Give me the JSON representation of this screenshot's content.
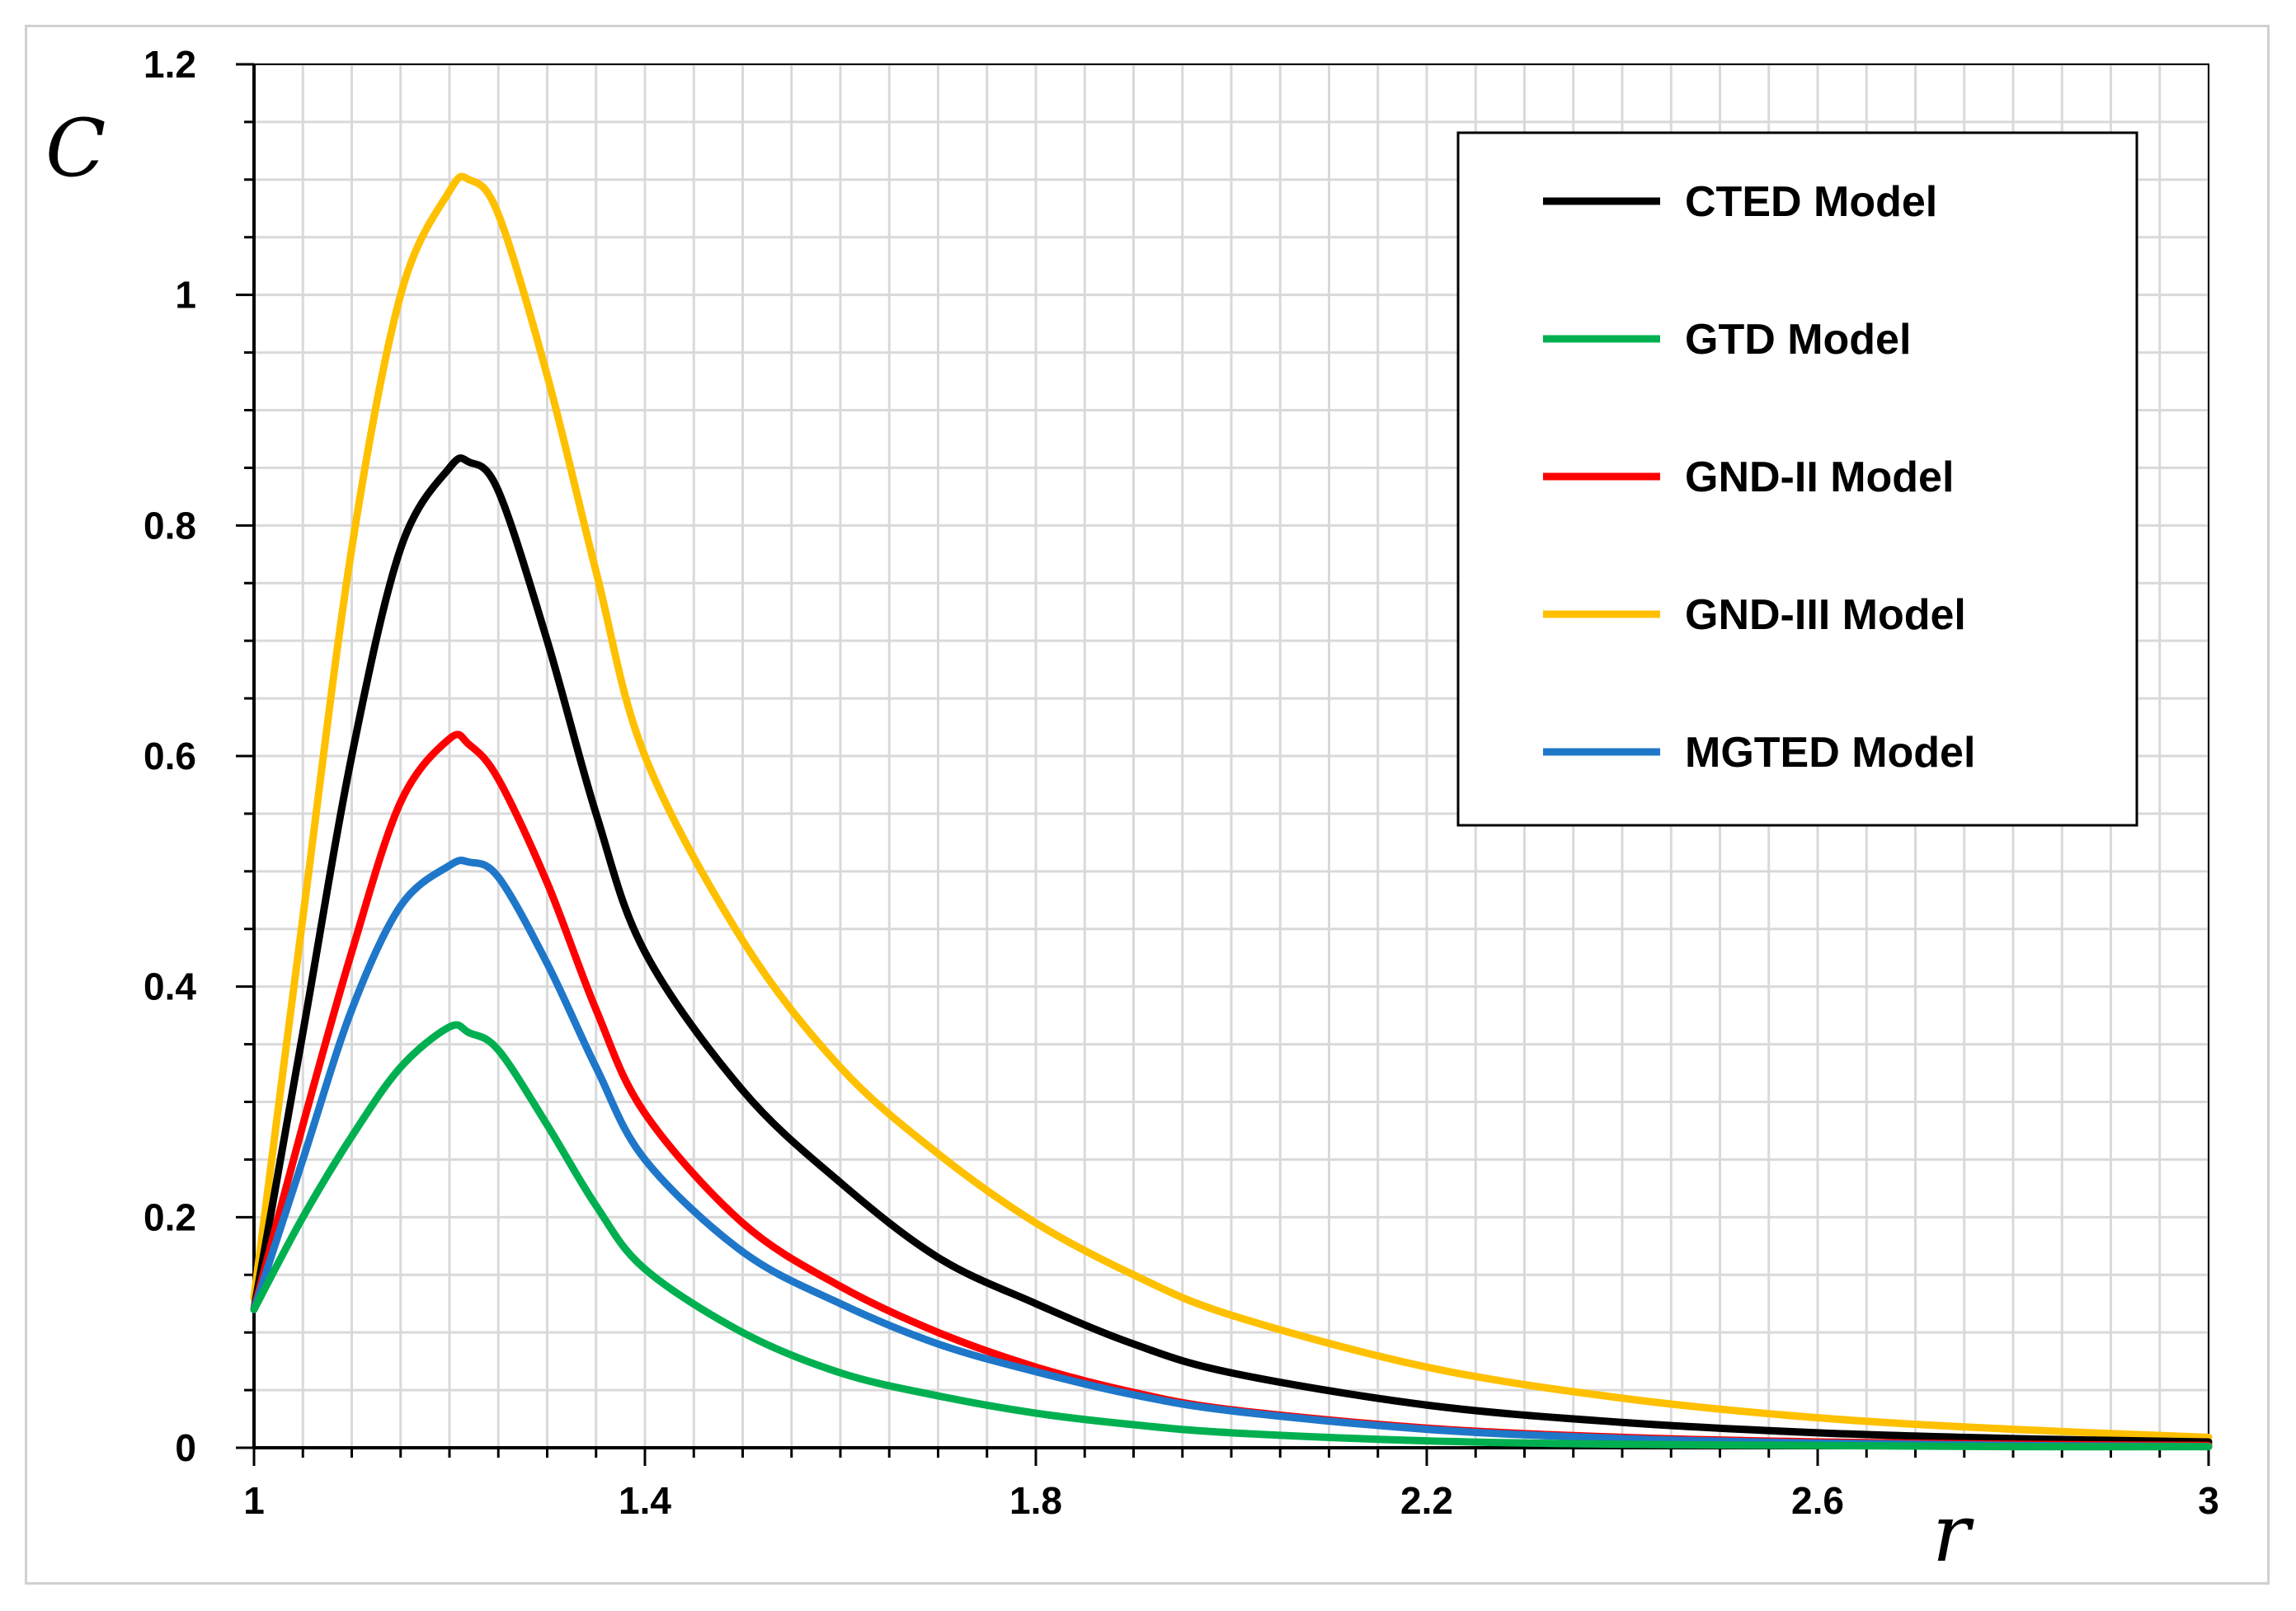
{
  "chart_data": {
    "type": "line",
    "title": "",
    "xlabel": "r",
    "ylabel": "C",
    "xlim": [
      1,
      3
    ],
    "ylim": [
      0,
      1.2
    ],
    "xticks": [
      "1",
      "1.4",
      "1.8",
      "2.2",
      "2.6",
      "3"
    ],
    "yticks": [
      "0",
      "0.2",
      "0.4",
      "0.6",
      "0.8",
      "1",
      "1.2"
    ],
    "grid": true,
    "legend_position": "top-right",
    "x": [
      1.0,
      1.05,
      1.1,
      1.15,
      1.2,
      1.22,
      1.25,
      1.3,
      1.35,
      1.4,
      1.5,
      1.6,
      1.7,
      1.8,
      1.9,
      2.0,
      2.2,
      2.4,
      2.6,
      2.8,
      3.0
    ],
    "series": [
      {
        "name": "CTED Model",
        "color": "#000000",
        "values": [
          0.12,
          0.36,
          0.6,
          0.78,
          0.85,
          0.855,
          0.83,
          0.7,
          0.55,
          0.43,
          0.31,
          0.23,
          0.165,
          0.125,
          0.09,
          0.065,
          0.037,
          0.022,
          0.013,
          0.008,
          0.005
        ]
      },
      {
        "name": "GTD Model",
        "color": "#00b050",
        "values": [
          0.12,
          0.2,
          0.27,
          0.33,
          0.365,
          0.36,
          0.345,
          0.28,
          0.21,
          0.155,
          0.1,
          0.065,
          0.045,
          0.03,
          0.02,
          0.013,
          0.006,
          0.003,
          0.002,
          0.001,
          0.001
        ]
      },
      {
        "name": "GND-II Model",
        "color": "#ff0000",
        "values": [
          0.12,
          0.28,
          0.43,
          0.56,
          0.615,
          0.61,
          0.58,
          0.49,
          0.38,
          0.29,
          0.195,
          0.14,
          0.1,
          0.07,
          0.048,
          0.033,
          0.017,
          0.009,
          0.005,
          0.003,
          0.002
        ]
      },
      {
        "name": "GND-III Model",
        "color": "#ffc000",
        "values": [
          0.13,
          0.46,
          0.78,
          1.0,
          1.09,
          1.1,
          1.07,
          0.93,
          0.76,
          0.6,
          0.44,
          0.33,
          0.255,
          0.195,
          0.15,
          0.115,
          0.07,
          0.043,
          0.026,
          0.016,
          0.009
        ]
      },
      {
        "name": "MGTED Model",
        "color": "#1f77c9",
        "values": [
          0.12,
          0.25,
          0.38,
          0.47,
          0.505,
          0.508,
          0.495,
          0.42,
          0.33,
          0.25,
          0.17,
          0.125,
          0.09,
          0.066,
          0.046,
          0.032,
          0.016,
          0.008,
          0.004,
          0.002,
          0.001
        ]
      }
    ]
  }
}
